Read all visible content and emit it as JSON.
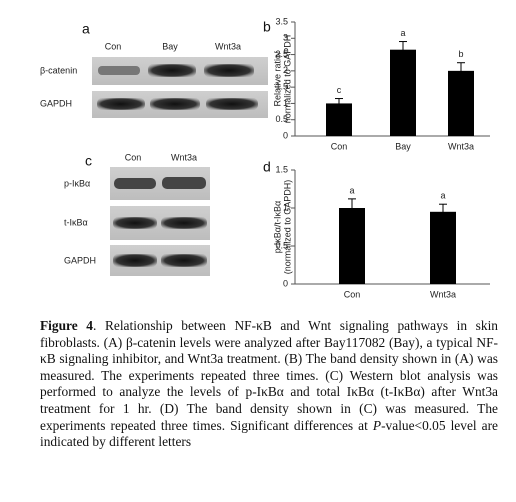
{
  "panels": {
    "a": {
      "label": "a",
      "lanes": [
        "Con",
        "Bay",
        "Wnt3a"
      ],
      "rows": [
        "β-catenin",
        "GAPDH"
      ]
    },
    "c": {
      "label": "c",
      "lanes": [
        "Con",
        "Wnt3a"
      ],
      "rows": [
        "p-IκBα",
        "t-IκBα",
        "GAPDH"
      ]
    }
  },
  "chart_data": [
    {
      "type": "bar",
      "panel_label": "b",
      "ylabel": [
        "Relative ratio/",
        "normalized to GAPDH"
      ],
      "categories": [
        "Con",
        "Bay",
        "Wnt3a"
      ],
      "values": [
        1,
        2.65,
        2
      ],
      "errors": [
        0.15,
        0.25,
        0.25
      ],
      "annotations": [
        "c",
        "a",
        "b"
      ],
      "color": "#000000",
      "ylim": [
        0,
        3.5
      ],
      "yticks": [
        0,
        0.5,
        1,
        1.5,
        2,
        2.5,
        3,
        3.5
      ]
    },
    {
      "type": "bar",
      "panel_label": "d",
      "ylabel": [
        "p-IκBα/t-IκBα",
        "(normalized to GAPDH)"
      ],
      "categories": [
        "Con",
        "Wnt3a"
      ],
      "values": [
        1,
        0.95
      ],
      "errors": [
        0.12,
        0.1
      ],
      "annotations": [
        "a",
        "a"
      ],
      "color": "#000000",
      "ylim": [
        0,
        1.5
      ],
      "yticks": [
        0,
        0.5,
        1,
        1.5
      ]
    }
  ],
  "caption": {
    "label": "Figure 4",
    "text": ". Relationship between NF-κB and Wnt signaling pathways in skin fibroblasts. (A) β-catenin levels were analyzed after Bay117082 (Bay), a typical NF-κB signaling inhibitor, and Wnt3a treatment. (B) The band density shown in (A) was measured. The experiments repeated three times. (C) Western blot analysis was performed to analyze the levels of p-IκBα and total IκBα (t-IκBα) after Wnt3a treatment for 1 hr. (D) The band density shown in (C) was measured. The experiments repeated three times. Significant differences at ",
    "italic": "P",
    "rest": "-value<0.05 level are indicated by different letters"
  }
}
